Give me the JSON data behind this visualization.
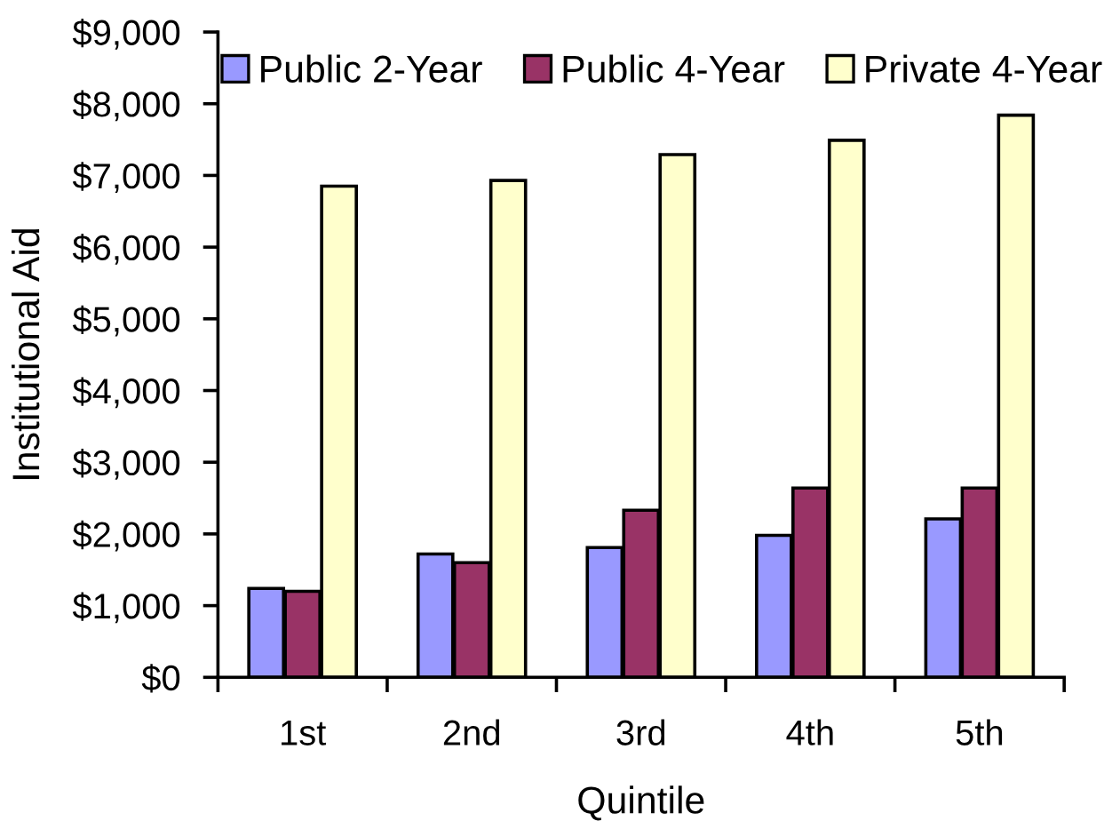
{
  "chart_data": {
    "type": "bar",
    "xlabel": "Quintile",
    "ylabel": "Institutional Aid",
    "categories": [
      "1st",
      "2nd",
      "3rd",
      "4th",
      "5th"
    ],
    "series": [
      {
        "name": "Public 2-Year",
        "color": "#9999ff",
        "values": [
          1240,
          1720,
          1810,
          1980,
          2210
        ]
      },
      {
        "name": "Public 4-Year",
        "color": "#993366",
        "values": [
          1200,
          1600,
          2330,
          2640,
          2640
        ]
      },
      {
        "name": "Private 4-Year",
        "color": "#ffffcc",
        "values": [
          6850,
          6930,
          7290,
          7490,
          7840
        ]
      }
    ],
    "ylim": [
      0,
      9000
    ],
    "yticks": [
      {
        "value": 0,
        "label": "$0"
      },
      {
        "value": 1000,
        "label": "$1,000"
      },
      {
        "value": 2000,
        "label": "$2,000"
      },
      {
        "value": 3000,
        "label": "$3,000"
      },
      {
        "value": 4000,
        "label": "$4,000"
      },
      {
        "value": 5000,
        "label": "$5,000"
      },
      {
        "value": 6000,
        "label": "$6,000"
      },
      {
        "value": 7000,
        "label": "$7,000"
      },
      {
        "value": 8000,
        "label": "$8,000"
      },
      {
        "value": 9000,
        "label": "$9,000"
      }
    ],
    "grid": false,
    "legend": "top"
  }
}
